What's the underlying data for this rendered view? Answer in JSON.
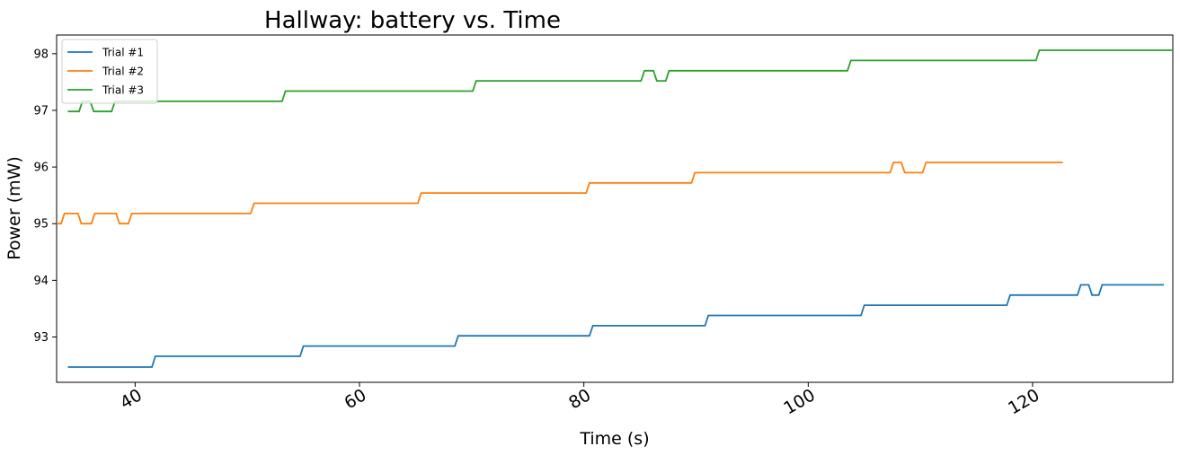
{
  "chart_data": {
    "type": "line",
    "title": "Hallway: battery vs. Time",
    "xlabel": "Time (s)",
    "ylabel": "Power (mW)",
    "xlim": [
      33,
      132.5
    ],
    "ylim": [
      92.2,
      98.33
    ],
    "xticks": [
      40,
      60,
      80,
      100,
      120
    ],
    "yticks": [
      93,
      94,
      95,
      96,
      97,
      98
    ],
    "grid": false,
    "legend_position": "top-left",
    "series": [
      {
        "name": "Trial #1",
        "color": "#1f77b4",
        "points": [
          [
            34,
            92.47
          ],
          [
            41.5,
            92.47
          ],
          [
            41.8,
            92.66
          ],
          [
            54.7,
            92.66
          ],
          [
            55.0,
            92.84
          ],
          [
            68.5,
            92.84
          ],
          [
            68.8,
            93.02
          ],
          [
            80.5,
            93.02
          ],
          [
            80.8,
            93.2
          ],
          [
            90.8,
            93.2
          ],
          [
            91.1,
            93.38
          ],
          [
            104.7,
            93.38
          ],
          [
            105.0,
            93.56
          ],
          [
            117.7,
            93.56
          ],
          [
            118.0,
            93.74
          ],
          [
            124.0,
            93.74
          ],
          [
            124.3,
            93.92
          ],
          [
            125.0,
            93.92
          ],
          [
            125.3,
            93.74
          ],
          [
            125.9,
            93.74
          ],
          [
            126.2,
            93.92
          ],
          [
            131.7,
            93.92
          ]
        ]
      },
      {
        "name": "Trial #2",
        "color": "#ff7f0e",
        "points": [
          [
            33.0,
            95.0
          ],
          [
            33.4,
            95.0
          ],
          [
            33.7,
            95.18
          ],
          [
            34.9,
            95.18
          ],
          [
            35.2,
            95.0
          ],
          [
            36.1,
            95.0
          ],
          [
            36.4,
            95.18
          ],
          [
            38.3,
            95.18
          ],
          [
            38.6,
            95.0
          ],
          [
            39.4,
            95.0
          ],
          [
            39.7,
            95.18
          ],
          [
            50.3,
            95.18
          ],
          [
            50.6,
            95.36
          ],
          [
            65.2,
            95.36
          ],
          [
            65.5,
            95.54
          ],
          [
            80.2,
            95.54
          ],
          [
            80.5,
            95.72
          ],
          [
            89.6,
            95.72
          ],
          [
            89.9,
            95.9
          ],
          [
            107.3,
            95.9
          ],
          [
            107.6,
            96.08
          ],
          [
            108.3,
            96.08
          ],
          [
            108.6,
            95.9
          ],
          [
            110.2,
            95.9
          ],
          [
            110.5,
            96.08
          ],
          [
            122.7,
            96.08
          ]
        ]
      },
      {
        "name": "Trial #3",
        "color": "#2ca02c",
        "points": [
          [
            34.0,
            96.98
          ],
          [
            35.0,
            96.98
          ],
          [
            35.3,
            97.16
          ],
          [
            36.0,
            97.16
          ],
          [
            36.3,
            96.98
          ],
          [
            37.9,
            96.98
          ],
          [
            38.2,
            97.16
          ],
          [
            53.1,
            97.16
          ],
          [
            53.4,
            97.34
          ],
          [
            70.1,
            97.34
          ],
          [
            70.4,
            97.52
          ],
          [
            85.1,
            97.52
          ],
          [
            85.4,
            97.7
          ],
          [
            86.2,
            97.7
          ],
          [
            86.5,
            97.52
          ],
          [
            87.3,
            97.52
          ],
          [
            87.6,
            97.7
          ],
          [
            103.5,
            97.7
          ],
          [
            103.8,
            97.88
          ],
          [
            120.3,
            97.88
          ],
          [
            120.6,
            98.06
          ],
          [
            132.5,
            98.06
          ]
        ]
      }
    ]
  }
}
